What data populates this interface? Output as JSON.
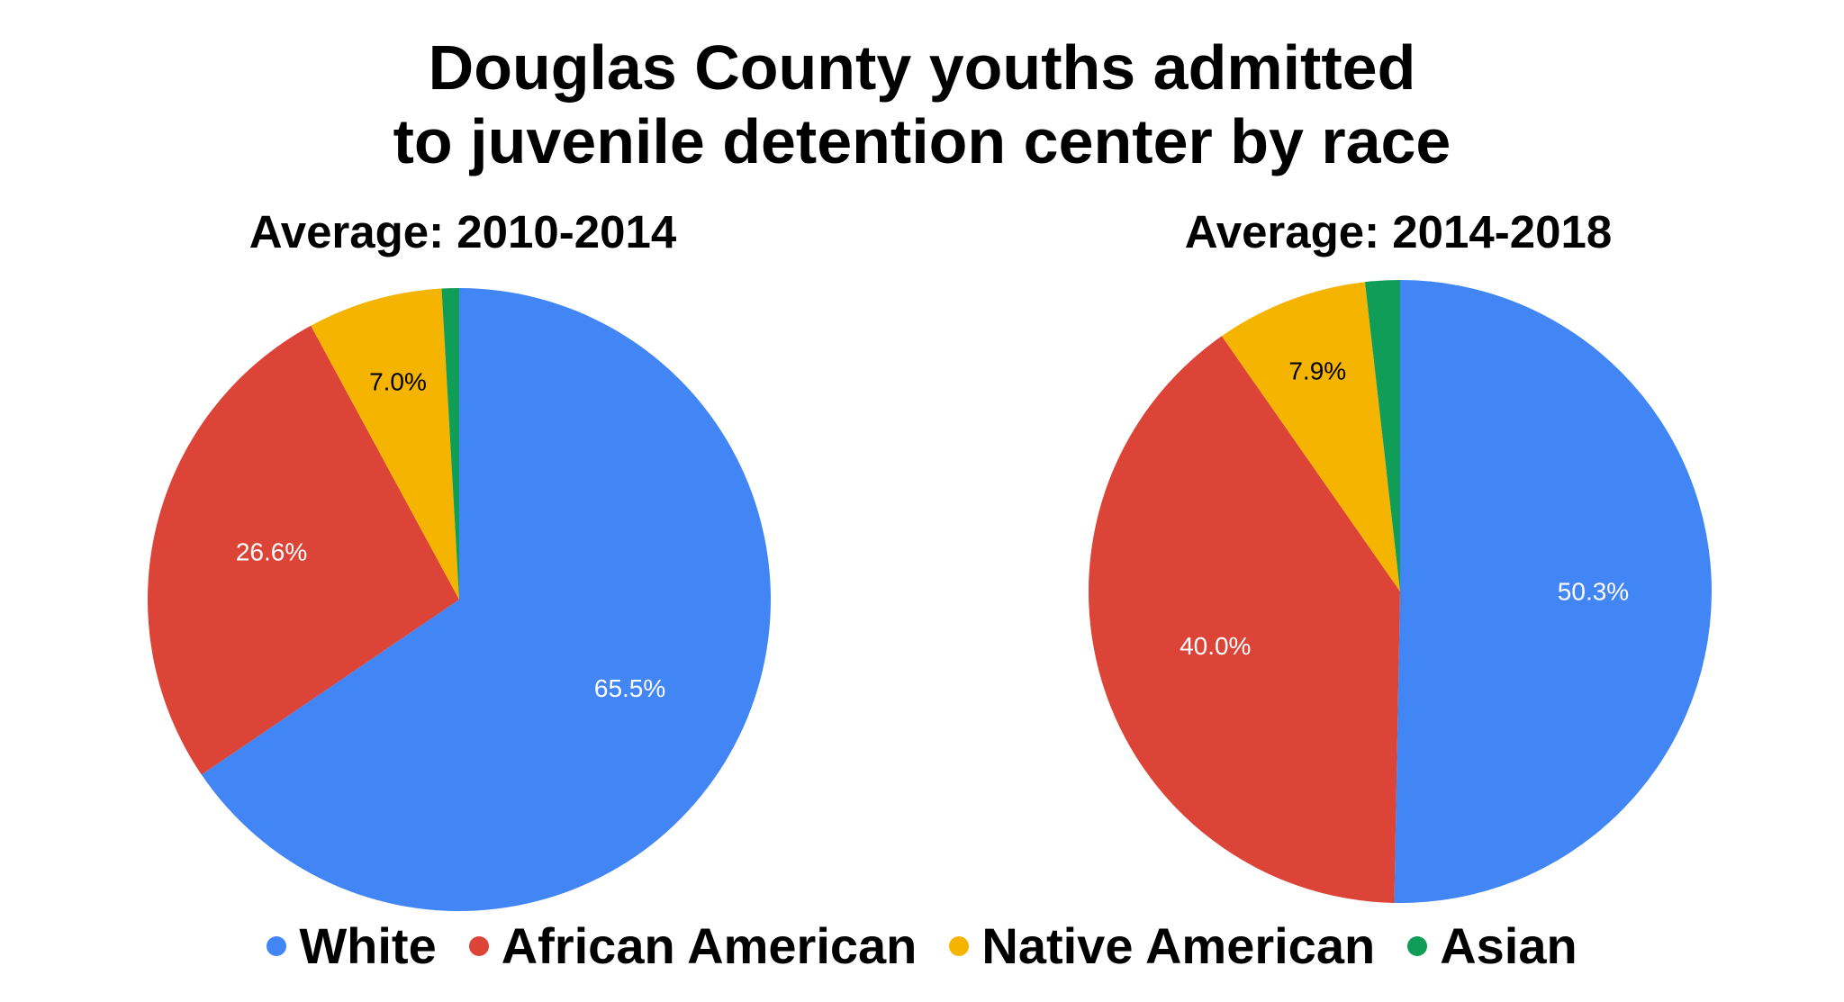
{
  "chart_data": [
    {
      "type": "pie",
      "title": "Douglas County youths admitted to juvenile detention center by race",
      "subtitle": "Average: 2010-2014",
      "labels": [
        "White",
        "African American",
        "Native American",
        "Asian"
      ],
      "values": [
        65.5,
        26.6,
        7.0,
        0.9
      ],
      "data_labels": [
        "65.5%",
        "26.6%",
        "7.0%",
        ""
      ],
      "colors": [
        "#4285F4",
        "#DB4437",
        "#F4B400",
        "#0F9D58"
      ]
    },
    {
      "type": "pie",
      "title": "Douglas County youths admitted to juvenile detention center by race",
      "subtitle": "Average: 2014-2018",
      "labels": [
        "White",
        "African American",
        "Native American",
        "Asian"
      ],
      "values": [
        50.3,
        40.0,
        7.9,
        1.8
      ],
      "data_labels": [
        "50.3%",
        "40.0%",
        "7.9%",
        ""
      ],
      "colors": [
        "#4285F4",
        "#DB4437",
        "#F4B400",
        "#0F9D58"
      ]
    }
  ],
  "header": {
    "title_line1": "Douglas County youths admitted",
    "title_line2": "to juvenile detention center by race"
  },
  "charts": {
    "left_subtitle": "Average: 2010-2014",
    "right_subtitle": "Average: 2014-2018"
  },
  "legend": {
    "items": [
      {
        "label": "White",
        "color": "#4285F4"
      },
      {
        "label": "African American",
        "color": "#DB4437"
      },
      {
        "label": "Native American",
        "color": "#F4B400"
      },
      {
        "label": "Asian",
        "color": "#0F9D58"
      }
    ],
    "placement": "bottom"
  }
}
